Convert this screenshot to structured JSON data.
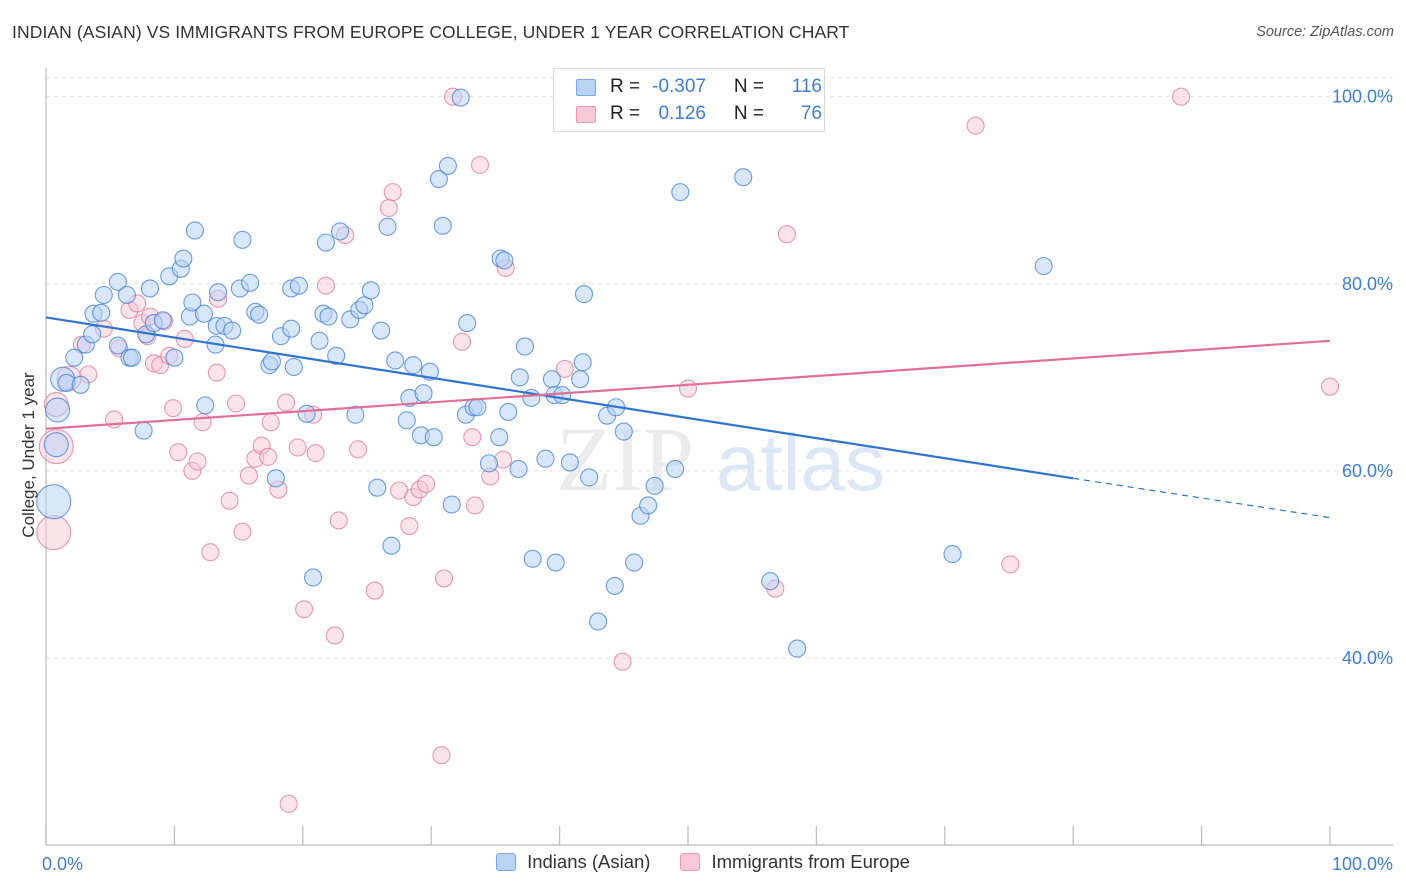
{
  "title": "INDIAN (ASIAN) VS IMMIGRANTS FROM EUROPE COLLEGE, UNDER 1 YEAR CORRELATION CHART",
  "source": "Source: ZipAtlas.com",
  "watermark": {
    "zip": "ZIP",
    "atlas": "atlas"
  },
  "legend": {
    "rows": [
      {
        "r_label": "R =",
        "r_value": "-0.307",
        "n_label": "N =",
        "n_value": "116",
        "fill": "#b9d3f5",
        "stroke": "#7aa7e6"
      },
      {
        "r_label": "R =",
        "r_value": "0.126",
        "n_label": "N =",
        "n_value": "76",
        "fill": "#f8c8d6",
        "stroke": "#ee97b2"
      }
    ]
  },
  "bottom_legend": [
    {
      "label": "Indians (Asian)",
      "fill": "#b9d3f5",
      "stroke": "#7aa7e6"
    },
    {
      "label": "Immigrants from Europe",
      "fill": "#f8c8d6",
      "stroke": "#ee97b2"
    }
  ],
  "chart_data": {
    "type": "scatter",
    "title": "INDIAN (ASIAN) VS IMMIGRANTS FROM EUROPE COLLEGE, UNDER 1 YEAR CORRELATION CHART",
    "xlabel": "",
    "ylabel": "College, Under 1 year",
    "xlim": [
      0,
      100
    ],
    "ylim": [
      20,
      102
    ],
    "x_tick_labels": [
      "0.0%",
      "100.0%"
    ],
    "y_tick_values": [
      40,
      60,
      80,
      100
    ],
    "y_tick_labels": [
      "40.0%",
      "60.0%",
      "80.0%",
      "100.0%"
    ],
    "grid": true,
    "legend_position": "top-center",
    "colors": {
      "Indians (Asian)": "#3d7fd6",
      "Immigrants from Europe": "#e07a9f"
    },
    "series": [
      {
        "name": "Indians (Asian)",
        "color": "#3d7fd6",
        "fill": "#b9d3f5",
        "trend": {
          "x": [
            0,
            80
          ],
          "y": [
            76.4,
            59.2
          ],
          "dashed_extension_to": [
            100,
            55.0
          ]
        },
        "points": [
          {
            "x": 0.6,
            "y": 56.7,
            "s": 3
          },
          {
            "x": 0.9,
            "y": 66.5,
            "s": 2
          },
          {
            "x": 0.8,
            "y": 62.8,
            "s": 2
          },
          {
            "x": 1.3,
            "y": 69.8,
            "s": 2
          },
          {
            "x": 1.6,
            "y": 69.4,
            "s": 1
          },
          {
            "x": 2.2,
            "y": 72.1,
            "s": 1
          },
          {
            "x": 2.7,
            "y": 69.2,
            "s": 1
          },
          {
            "x": 3.1,
            "y": 73.5,
            "s": 1
          },
          {
            "x": 3.6,
            "y": 74.6,
            "s": 1
          },
          {
            "x": 3.7,
            "y": 76.8,
            "s": 1
          },
          {
            "x": 4.3,
            "y": 76.9,
            "s": 1
          },
          {
            "x": 4.5,
            "y": 78.8,
            "s": 1
          },
          {
            "x": 5.6,
            "y": 73.4,
            "s": 1
          },
          {
            "x": 5.6,
            "y": 80.2,
            "s": 1
          },
          {
            "x": 6.3,
            "y": 78.8,
            "s": 1
          },
          {
            "x": 6.5,
            "y": 72.1,
            "s": 1
          },
          {
            "x": 6.7,
            "y": 72.1,
            "s": 1
          },
          {
            "x": 7.6,
            "y": 64.3,
            "s": 1
          },
          {
            "x": 7.8,
            "y": 74.6,
            "s": 1
          },
          {
            "x": 8.1,
            "y": 79.5,
            "s": 1
          },
          {
            "x": 8.4,
            "y": 75.8,
            "s": 1
          },
          {
            "x": 9.1,
            "y": 76.1,
            "s": 1
          },
          {
            "x": 9.6,
            "y": 80.8,
            "s": 1
          },
          {
            "x": 10.0,
            "y": 72.1,
            "s": 1
          },
          {
            "x": 10.5,
            "y": 81.6,
            "s": 1
          },
          {
            "x": 10.7,
            "y": 82.7,
            "s": 1
          },
          {
            "x": 11.2,
            "y": 76.5,
            "s": 1
          },
          {
            "x": 11.4,
            "y": 78.0,
            "s": 1
          },
          {
            "x": 11.6,
            "y": 85.7,
            "s": 1
          },
          {
            "x": 12.3,
            "y": 76.8,
            "s": 1
          },
          {
            "x": 12.4,
            "y": 67.0,
            "s": 1
          },
          {
            "x": 13.2,
            "y": 73.5,
            "s": 1
          },
          {
            "x": 13.3,
            "y": 75.5,
            "s": 1
          },
          {
            "x": 13.4,
            "y": 79.1,
            "s": 1
          },
          {
            "x": 13.9,
            "y": 75.5,
            "s": 1
          },
          {
            "x": 14.5,
            "y": 75.0,
            "s": 1
          },
          {
            "x": 15.1,
            "y": 79.5,
            "s": 1
          },
          {
            "x": 15.3,
            "y": 84.7,
            "s": 1
          },
          {
            "x": 15.9,
            "y": 80.1,
            "s": 1
          },
          {
            "x": 16.3,
            "y": 77.0,
            "s": 1
          },
          {
            "x": 16.6,
            "y": 76.7,
            "s": 1
          },
          {
            "x": 17.4,
            "y": 71.3,
            "s": 1
          },
          {
            "x": 17.6,
            "y": 71.7,
            "s": 1
          },
          {
            "x": 17.9,
            "y": 59.2,
            "s": 1
          },
          {
            "x": 18.3,
            "y": 74.4,
            "s": 1
          },
          {
            "x": 19.1,
            "y": 79.5,
            "s": 1
          },
          {
            "x": 19.1,
            "y": 75.2,
            "s": 1
          },
          {
            "x": 19.3,
            "y": 71.1,
            "s": 1
          },
          {
            "x": 19.7,
            "y": 79.8,
            "s": 1
          },
          {
            "x": 20.3,
            "y": 66.1,
            "s": 1
          },
          {
            "x": 20.8,
            "y": 48.6,
            "s": 1
          },
          {
            "x": 21.3,
            "y": 73.9,
            "s": 1
          },
          {
            "x": 21.6,
            "y": 76.8,
            "s": 1
          },
          {
            "x": 21.8,
            "y": 84.4,
            "s": 1
          },
          {
            "x": 22.0,
            "y": 76.5,
            "s": 1
          },
          {
            "x": 22.6,
            "y": 72.3,
            "s": 1
          },
          {
            "x": 22.9,
            "y": 85.6,
            "s": 1
          },
          {
            "x": 23.7,
            "y": 76.2,
            "s": 1
          },
          {
            "x": 24.1,
            "y": 66.0,
            "s": 1
          },
          {
            "x": 24.4,
            "y": 77.2,
            "s": 1
          },
          {
            "x": 24.8,
            "y": 77.7,
            "s": 1
          },
          {
            "x": 25.3,
            "y": 79.3,
            "s": 1
          },
          {
            "x": 25.8,
            "y": 58.2,
            "s": 1
          },
          {
            "x": 26.1,
            "y": 75.0,
            "s": 1
          },
          {
            "x": 26.6,
            "y": 86.1,
            "s": 1
          },
          {
            "x": 26.9,
            "y": 52.0,
            "s": 1
          },
          {
            "x": 27.2,
            "y": 71.8,
            "s": 1
          },
          {
            "x": 28.1,
            "y": 65.4,
            "s": 1
          },
          {
            "x": 28.3,
            "y": 67.8,
            "s": 1
          },
          {
            "x": 28.6,
            "y": 71.3,
            "s": 1
          },
          {
            "x": 29.2,
            "y": 63.8,
            "s": 1
          },
          {
            "x": 29.4,
            "y": 68.3,
            "s": 1
          },
          {
            "x": 29.9,
            "y": 70.6,
            "s": 1
          },
          {
            "x": 30.2,
            "y": 63.6,
            "s": 1
          },
          {
            "x": 30.6,
            "y": 91.2,
            "s": 1
          },
          {
            "x": 30.9,
            "y": 86.2,
            "s": 1
          },
          {
            "x": 31.3,
            "y": 92.6,
            "s": 1
          },
          {
            "x": 31.6,
            "y": 56.4,
            "s": 1
          },
          {
            "x": 32.3,
            "y": 99.9,
            "s": 1
          },
          {
            "x": 32.7,
            "y": 66.0,
            "s": 1
          },
          {
            "x": 32.8,
            "y": 75.8,
            "s": 1
          },
          {
            "x": 33.3,
            "y": 66.8,
            "s": 1
          },
          {
            "x": 33.6,
            "y": 66.8,
            "s": 1
          },
          {
            "x": 34.5,
            "y": 60.8,
            "s": 1
          },
          {
            "x": 35.3,
            "y": 63.6,
            "s": 1
          },
          {
            "x": 35.4,
            "y": 82.7,
            "s": 1
          },
          {
            "x": 36.0,
            "y": 66.3,
            "s": 1
          },
          {
            "x": 35.7,
            "y": 82.5,
            "s": 1
          },
          {
            "x": 36.8,
            "y": 60.2,
            "s": 1
          },
          {
            "x": 36.9,
            "y": 70.0,
            "s": 1
          },
          {
            "x": 37.3,
            "y": 73.3,
            "s": 1
          },
          {
            "x": 37.8,
            "y": 67.8,
            "s": 1
          },
          {
            "x": 37.9,
            "y": 50.6,
            "s": 1
          },
          {
            "x": 38.9,
            "y": 61.3,
            "s": 1
          },
          {
            "x": 39.4,
            "y": 69.8,
            "s": 1
          },
          {
            "x": 39.6,
            "y": 68.1,
            "s": 1
          },
          {
            "x": 39.7,
            "y": 50.2,
            "s": 1
          },
          {
            "x": 40.2,
            "y": 68.1,
            "s": 1
          },
          {
            "x": 40.8,
            "y": 60.9,
            "s": 1
          },
          {
            "x": 41.6,
            "y": 69.8,
            "s": 1
          },
          {
            "x": 41.8,
            "y": 71.6,
            "s": 1
          },
          {
            "x": 41.9,
            "y": 78.9,
            "s": 1
          },
          {
            "x": 42.3,
            "y": 59.3,
            "s": 1
          },
          {
            "x": 43.0,
            "y": 43.9,
            "s": 1
          },
          {
            "x": 43.7,
            "y": 65.9,
            "s": 1
          },
          {
            "x": 44.3,
            "y": 47.7,
            "s": 1
          },
          {
            "x": 44.4,
            "y": 66.8,
            "s": 1
          },
          {
            "x": 45.0,
            "y": 64.2,
            "s": 1
          },
          {
            "x": 45.8,
            "y": 50.2,
            "s": 1
          },
          {
            "x": 46.1,
            "y": 97.4,
            "s": 1
          },
          {
            "x": 46.3,
            "y": 55.2,
            "s": 1
          },
          {
            "x": 46.9,
            "y": 56.3,
            "s": 1
          },
          {
            "x": 47.4,
            "y": 58.4,
            "s": 1
          },
          {
            "x": 49.0,
            "y": 60.2,
            "s": 1
          },
          {
            "x": 49.4,
            "y": 89.8,
            "s": 1
          },
          {
            "x": 54.3,
            "y": 91.4,
            "s": 1
          },
          {
            "x": 56.4,
            "y": 48.2,
            "s": 1
          },
          {
            "x": 58.5,
            "y": 41.0,
            "s": 1
          },
          {
            "x": 70.6,
            "y": 51.1,
            "s": 1
          },
          {
            "x": 77.7,
            "y": 81.9,
            "s": 1
          }
        ]
      },
      {
        "name": "Immigrants from Europe",
        "color": "#e07a9f",
        "fill": "#f8c8d6",
        "trend": {
          "x": [
            0,
            100
          ],
          "y": [
            64.5,
            73.9
          ]
        },
        "points": [
          {
            "x": 0.6,
            "y": 53.4,
            "s": 3
          },
          {
            "x": 0.8,
            "y": 62.6,
            "s": 3
          },
          {
            "x": 0.8,
            "y": 67.1,
            "s": 2
          },
          {
            "x": 1.8,
            "y": 69.9,
            "s": 2
          },
          {
            "x": 2.8,
            "y": 73.5,
            "s": 1
          },
          {
            "x": 3.3,
            "y": 70.3,
            "s": 1
          },
          {
            "x": 4.5,
            "y": 75.2,
            "s": 1
          },
          {
            "x": 5.3,
            "y": 65.5,
            "s": 1
          },
          {
            "x": 5.7,
            "y": 73.1,
            "s": 1
          },
          {
            "x": 6.5,
            "y": 77.2,
            "s": 1
          },
          {
            "x": 7.1,
            "y": 77.9,
            "s": 1
          },
          {
            "x": 7.5,
            "y": 75.8,
            "s": 1
          },
          {
            "x": 7.9,
            "y": 74.4,
            "s": 1
          },
          {
            "x": 8.1,
            "y": 76.5,
            "s": 1
          },
          {
            "x": 8.4,
            "y": 71.5,
            "s": 1
          },
          {
            "x": 8.9,
            "y": 71.3,
            "s": 1
          },
          {
            "x": 9.2,
            "y": 76.0,
            "s": 1
          },
          {
            "x": 9.6,
            "y": 72.3,
            "s": 1
          },
          {
            "x": 9.9,
            "y": 66.7,
            "s": 1
          },
          {
            "x": 10.3,
            "y": 62.0,
            "s": 1
          },
          {
            "x": 10.8,
            "y": 74.1,
            "s": 1
          },
          {
            "x": 11.4,
            "y": 60.0,
            "s": 1
          },
          {
            "x": 11.8,
            "y": 61.0,
            "s": 1
          },
          {
            "x": 12.2,
            "y": 65.2,
            "s": 1
          },
          {
            "x": 12.8,
            "y": 51.3,
            "s": 1
          },
          {
            "x": 13.3,
            "y": 70.5,
            "s": 1
          },
          {
            "x": 13.4,
            "y": 78.4,
            "s": 1
          },
          {
            "x": 14.3,
            "y": 56.8,
            "s": 1
          },
          {
            "x": 14.8,
            "y": 67.2,
            "s": 1
          },
          {
            "x": 15.3,
            "y": 53.5,
            "s": 1
          },
          {
            "x": 15.8,
            "y": 59.5,
            "s": 1
          },
          {
            "x": 16.3,
            "y": 61.3,
            "s": 1
          },
          {
            "x": 16.8,
            "y": 62.7,
            "s": 1
          },
          {
            "x": 17.3,
            "y": 61.5,
            "s": 1
          },
          {
            "x": 17.5,
            "y": 65.2,
            "s": 1
          },
          {
            "x": 18.1,
            "y": 58.0,
            "s": 1
          },
          {
            "x": 18.7,
            "y": 67.3,
            "s": 1
          },
          {
            "x": 18.9,
            "y": 24.4,
            "s": 1
          },
          {
            "x": 19.6,
            "y": 62.5,
            "s": 1
          },
          {
            "x": 20.1,
            "y": 45.2,
            "s": 1
          },
          {
            "x": 20.8,
            "y": 66.0,
            "s": 1
          },
          {
            "x": 21.0,
            "y": 61.9,
            "s": 1
          },
          {
            "x": 21.8,
            "y": 79.8,
            "s": 1
          },
          {
            "x": 22.5,
            "y": 42.4,
            "s": 1
          },
          {
            "x": 22.8,
            "y": 54.7,
            "s": 1
          },
          {
            "x": 23.3,
            "y": 85.2,
            "s": 1
          },
          {
            "x": 24.3,
            "y": 62.3,
            "s": 1
          },
          {
            "x": 25.6,
            "y": 47.2,
            "s": 1
          },
          {
            "x": 26.7,
            "y": 88.1,
            "s": 1
          },
          {
            "x": 27.0,
            "y": 89.8,
            "s": 1
          },
          {
            "x": 27.5,
            "y": 57.9,
            "s": 1
          },
          {
            "x": 28.3,
            "y": 54.1,
            "s": 1
          },
          {
            "x": 28.6,
            "y": 57.2,
            "s": 1
          },
          {
            "x": 29.1,
            "y": 58.0,
            "s": 1
          },
          {
            "x": 29.6,
            "y": 58.6,
            "s": 1
          },
          {
            "x": 30.8,
            "y": 29.6,
            "s": 1
          },
          {
            "x": 31.0,
            "y": 48.5,
            "s": 1
          },
          {
            "x": 31.7,
            "y": 100.0,
            "s": 1
          },
          {
            "x": 32.4,
            "y": 73.8,
            "s": 1
          },
          {
            "x": 33.2,
            "y": 63.6,
            "s": 1
          },
          {
            "x": 33.4,
            "y": 56.3,
            "s": 1
          },
          {
            "x": 33.8,
            "y": 92.7,
            "s": 1
          },
          {
            "x": 34.6,
            "y": 59.4,
            "s": 1
          },
          {
            "x": 35.6,
            "y": 61.2,
            "s": 1
          },
          {
            "x": 35.8,
            "y": 81.7,
            "s": 1
          },
          {
            "x": 40.4,
            "y": 70.9,
            "s": 1
          },
          {
            "x": 44.9,
            "y": 39.6,
            "s": 1
          },
          {
            "x": 47.1,
            "y": 100.0,
            "s": 1
          },
          {
            "x": 50.0,
            "y": 68.8,
            "s": 1
          },
          {
            "x": 56.8,
            "y": 47.4,
            "s": 1
          },
          {
            "x": 57.7,
            "y": 85.3,
            "s": 1
          },
          {
            "x": 72.4,
            "y": 96.9,
            "s": 1
          },
          {
            "x": 75.1,
            "y": 50.0,
            "s": 1
          },
          {
            "x": 88.4,
            "y": 100.0,
            "s": 1
          },
          {
            "x": 100.0,
            "y": 69.0,
            "s": 1
          }
        ]
      }
    ]
  }
}
